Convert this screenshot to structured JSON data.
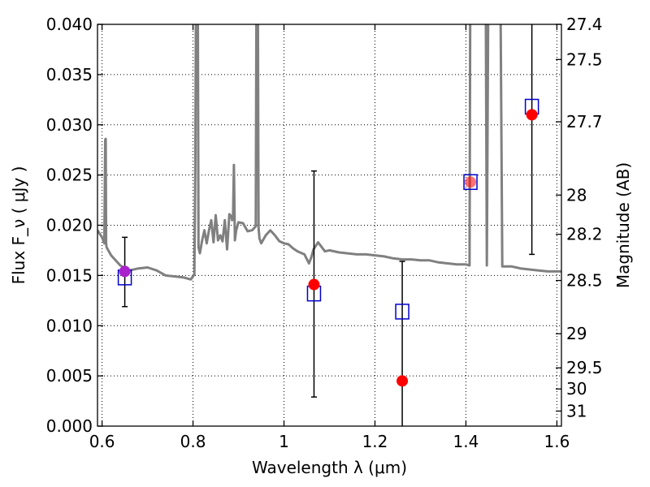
{
  "chart_data": {
    "type": "scatter",
    "title": "",
    "xlabel": "Wavelength λ (μm)",
    "ylabel": "Flux F_ν ( μJy )",
    "y2label": "Magnitude (AB)",
    "xlim": [
      0.59,
      1.61
    ],
    "ylim": [
      0.0,
      0.04
    ],
    "grid": true,
    "x_ticks": [
      "0.6",
      "0.8",
      "1",
      "1.2",
      "1.4",
      "1.6"
    ],
    "x_tick_values": [
      0.6,
      0.8,
      1.0,
      1.2,
      1.4,
      1.6
    ],
    "y_ticks": [
      "0.000",
      "0.005",
      "0.010",
      "0.015",
      "0.020",
      "0.025",
      "0.030",
      "0.035",
      "0.040"
    ],
    "y_tick_values": [
      0.0,
      0.005,
      0.01,
      0.015,
      0.02,
      0.025,
      0.03,
      0.035,
      0.04
    ],
    "y2_ticks": [
      {
        "label": "27.4",
        "flux": 0.04
      },
      {
        "label": "27.5",
        "flux": 0.0365
      },
      {
        "label": "27.7",
        "flux": 0.0303
      },
      {
        "label": "28",
        "flux": 0.023
      },
      {
        "label": "28.2",
        "flux": 0.0191
      },
      {
        "label": "28.5",
        "flux": 0.0145
      },
      {
        "label": "29",
        "flux": 0.0092
      },
      {
        "label": "29.5",
        "flux": 0.0058
      },
      {
        "label": "30",
        "flux": 0.0037
      },
      {
        "label": "31",
        "flux": 0.0015
      }
    ],
    "model_spectrum": {
      "color": "#808080",
      "x": [
        0.59,
        0.6,
        0.605,
        0.607,
        0.608,
        0.609,
        0.61,
        0.62,
        0.64,
        0.66,
        0.68,
        0.7,
        0.72,
        0.74,
        0.76,
        0.78,
        0.795,
        0.803,
        0.805,
        0.807,
        0.808,
        0.81,
        0.812,
        0.815,
        0.82,
        0.825,
        0.83,
        0.835,
        0.84,
        0.845,
        0.85,
        0.855,
        0.86,
        0.865,
        0.87,
        0.875,
        0.88,
        0.884,
        0.886,
        0.888,
        0.89,
        0.892,
        0.895,
        0.9,
        0.91,
        0.92,
        0.93,
        0.938,
        0.94,
        0.942,
        0.944,
        0.946,
        0.95,
        0.96,
        0.97,
        0.98,
        0.99,
        1.0,
        1.01,
        1.02,
        1.03,
        1.045,
        1.055,
        1.06,
        1.065,
        1.075,
        1.09,
        1.1,
        1.12,
        1.14,
        1.16,
        1.18,
        1.2,
        1.22,
        1.24,
        1.26,
        1.28,
        1.3,
        1.32,
        1.34,
        1.36,
        1.38,
        1.395,
        1.4,
        1.408,
        1.41,
        1.414,
        1.416,
        1.42,
        1.425,
        1.43,
        1.432,
        1.436,
        1.44,
        1.443,
        1.446,
        1.45,
        1.455,
        1.46,
        1.47,
        1.475,
        1.48,
        1.5,
        1.52,
        1.54,
        1.56,
        1.58,
        1.6,
        1.61
      ],
      "y": [
        0.0195,
        0.0188,
        0.0182,
        0.0285,
        0.0286,
        0.0182,
        0.0178,
        0.017,
        0.016,
        0.0155,
        0.0157,
        0.0158,
        0.0155,
        0.015,
        0.0149,
        0.0148,
        0.0146,
        0.0151,
        0.0255,
        0.05,
        0.05,
        0.05,
        0.0178,
        0.0172,
        0.0185,
        0.0195,
        0.0182,
        0.0195,
        0.0205,
        0.0183,
        0.021,
        0.0185,
        0.019,
        0.0184,
        0.0205,
        0.0176,
        0.0211,
        0.0209,
        0.0205,
        0.0208,
        0.026,
        0.0185,
        0.0195,
        0.0203,
        0.0202,
        0.0194,
        0.0195,
        0.0199,
        0.05,
        0.05,
        0.0198,
        0.0187,
        0.0182,
        0.019,
        0.0195,
        0.019,
        0.0184,
        0.0182,
        0.0181,
        0.0177,
        0.0174,
        0.0171,
        0.0162,
        0.0168,
        0.0176,
        0.0183,
        0.0174,
        0.0175,
        0.0173,
        0.0172,
        0.0171,
        0.0171,
        0.017,
        0.0169,
        0.0167,
        0.0166,
        0.0166,
        0.0165,
        0.0165,
        0.0163,
        0.0162,
        0.0161,
        0.0161,
        0.0161,
        0.016,
        0.05,
        0.05,
        0.05,
        0.05,
        0.05,
        0.05,
        0.05,
        0.0465,
        0.05,
        0.05,
        0.016,
        0.05,
        0.05,
        0.05,
        0.05,
        0.05,
        0.0159,
        0.0159,
        0.0157,
        0.0156,
        0.0155,
        0.0154,
        0.0154,
        0.0154
      ]
    },
    "series": [
      {
        "marker": "square",
        "color": "#0000cc",
        "points": [
          [
            0.65,
            0.0148
          ],
          [
            1.066,
            0.0132
          ],
          [
            1.26,
            0.0114
          ],
          [
            1.41,
            0.0243
          ],
          [
            1.545,
            0.0318
          ]
        ]
      },
      {
        "marker": "circle",
        "color": "#ff0000",
        "points": [
          [
            0.65,
            0.0154
          ],
          [
            1.066,
            0.0141
          ],
          [
            1.26,
            0.0045
          ],
          [
            1.41,
            0.0243
          ],
          [
            1.545,
            0.031
          ]
        ],
        "errors": [
          [
            0.0119,
            0.0188
          ],
          [
            0.0029,
            0.0254
          ],
          [
            0.0,
            0.0164
          ],
          null,
          [
            0.0171,
            0.05
          ]
        ]
      }
    ],
    "overlap_color": "#aa22cc"
  }
}
